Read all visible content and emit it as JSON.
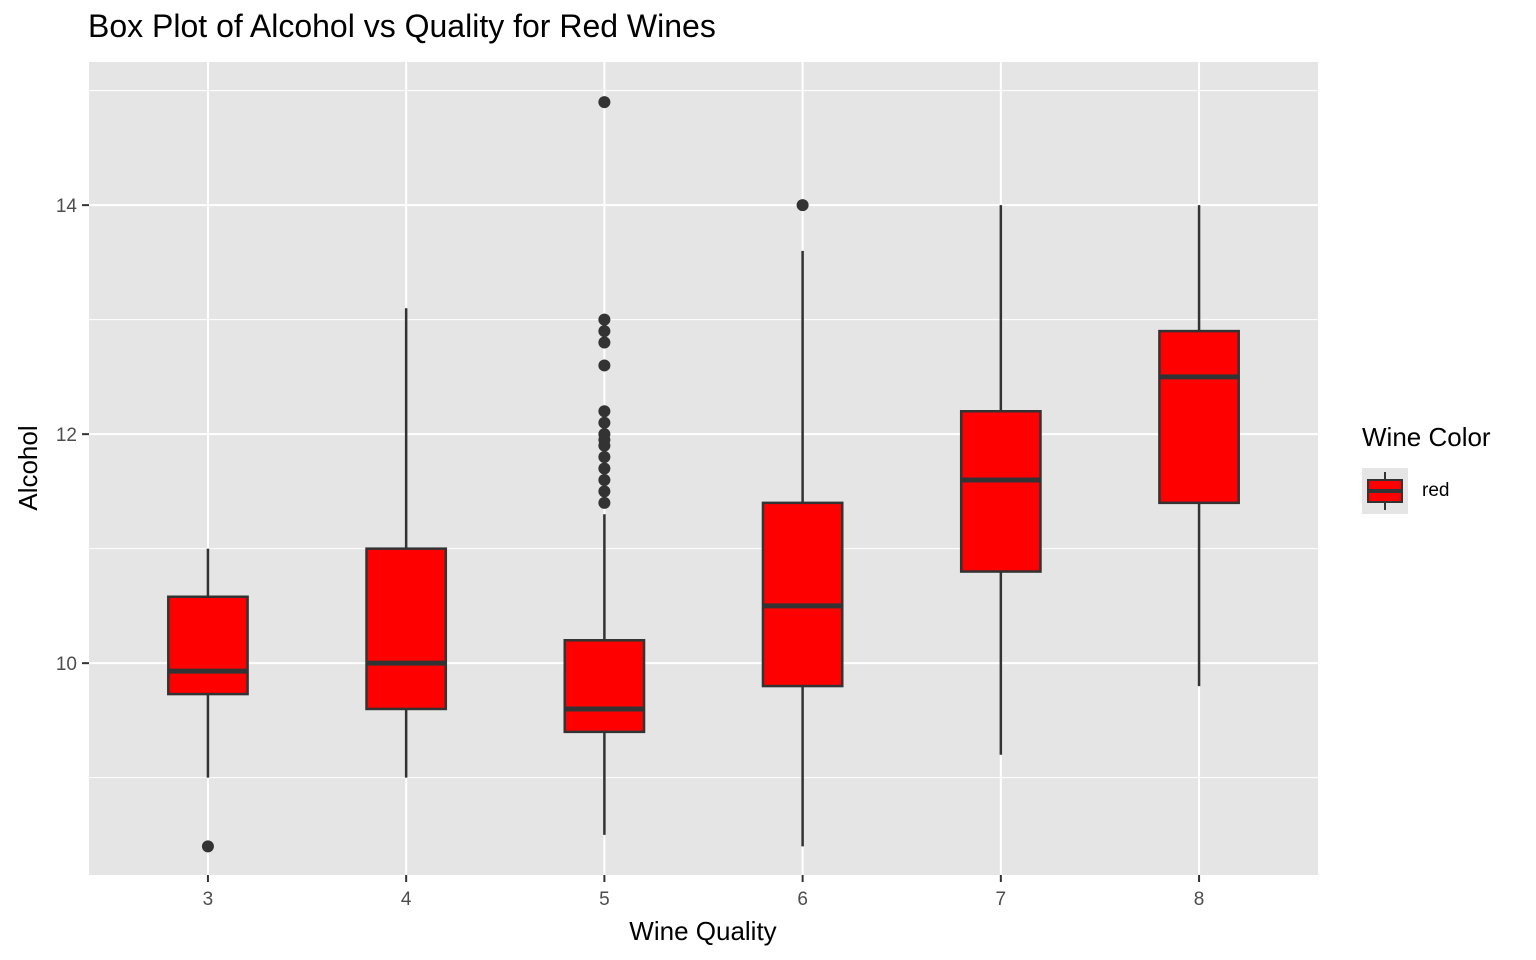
{
  "chart_data": {
    "type": "box",
    "title": "Box Plot of Alcohol vs Quality for Red Wines",
    "xlabel": "Wine Quality",
    "ylabel": "Alcohol",
    "categories": [
      "3",
      "4",
      "5",
      "6",
      "7",
      "8"
    ],
    "ylim": [
      8.15,
      15.25
    ],
    "yticks": [
      10,
      12,
      14
    ],
    "yticks_labels": [
      "10",
      "12",
      "14"
    ],
    "grid": true,
    "legend": {
      "title": "Wine Color",
      "position": "right",
      "entries": [
        {
          "name": "red",
          "color": "#ff0000"
        }
      ]
    },
    "boxes": [
      {
        "category": "3",
        "whisker_low": 9.0,
        "q1": 9.73,
        "median": 9.93,
        "q3": 10.58,
        "whisker_high": 11.0,
        "outliers": [
          8.4
        ]
      },
      {
        "category": "4",
        "whisker_low": 9.0,
        "q1": 9.6,
        "median": 10.0,
        "q3": 11.0,
        "whisker_high": 13.1,
        "outliers": []
      },
      {
        "category": "5",
        "whisker_low": 8.5,
        "q1": 9.4,
        "median": 9.6,
        "q3": 10.2,
        "whisker_high": 11.3,
        "outliers": [
          11.4,
          11.5,
          11.6,
          11.7,
          11.8,
          11.9,
          11.95,
          12.0,
          12.1,
          12.2,
          12.6,
          12.8,
          12.9,
          13.0,
          14.9
        ]
      },
      {
        "category": "6",
        "whisker_low": 8.4,
        "q1": 9.8,
        "median": 10.5,
        "q3": 11.4,
        "whisker_high": 13.6,
        "outliers": [
          14.0
        ]
      },
      {
        "category": "7",
        "whisker_low": 9.2,
        "q1": 10.8,
        "median": 11.6,
        "q3": 12.2,
        "whisker_high": 14.0,
        "outliers": []
      },
      {
        "category": "8",
        "whisker_low": 9.8,
        "q1": 11.4,
        "median": 12.5,
        "q3": 12.9,
        "whisker_high": 14.0,
        "outliers": []
      }
    ],
    "colors": {
      "box_fill": "#ff0000",
      "box_line": "#333333",
      "panel_bg": "#e5e5e5",
      "grid": "#ffffff"
    }
  }
}
